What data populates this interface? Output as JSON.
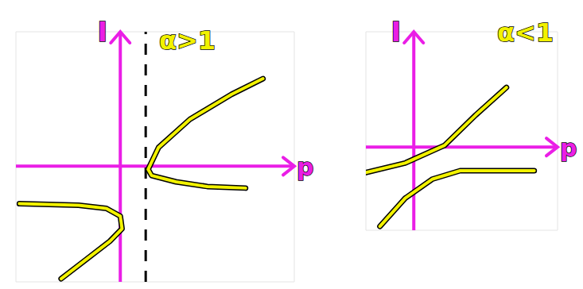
{
  "chart_data": [
    {
      "type": "line",
      "title": "α>1",
      "x_label": "p",
      "y_label": "I",
      "xlim": [
        -3,
        5
      ],
      "ylim": [
        -3.7,
        4.3
      ],
      "tick_labels": false,
      "reference_lines": [
        {
          "x": 0.73,
          "line_style": "dashed"
        }
      ],
      "series": [
        {
          "color": "#f2f200",
          "x": [
            4.1,
            3.2,
            2.0,
            1.1,
            0.8,
            0.9,
            1.6,
            2.5,
            3.6
          ],
          "values": [
            2.8,
            2.3,
            1.5,
            0.6,
            -0.1,
            -0.3,
            -0.5,
            -0.65,
            -0.7
          ]
        },
        {
          "color": "#f2f200",
          "x": [
            -2.9,
            -1.2,
            -0.4,
            0,
            0.05,
            -0.3,
            -1.0,
            -1.7
          ],
          "values": [
            -1.2,
            -1.25,
            -1.35,
            -1.6,
            -2.0,
            -2.4,
            -3.0,
            -3.6
          ]
        }
      ]
    },
    {
      "type": "line",
      "title": "α<1",
      "x_label": "p",
      "y_label": "I",
      "xlim": [
        -1.5,
        4.5
      ],
      "ylim": [
        -2.6,
        3.6
      ],
      "tick_labels": false,
      "reference_lines": [],
      "series": [
        {
          "color": "#f2f200",
          "x": [
            -1.5,
            -0.27,
            0.96,
            1.94,
            2.9
          ],
          "values": [
            -0.8,
            -0.5,
            0.05,
            1.0,
            1.86
          ]
        },
        {
          "color": "#f2f200",
          "x": [
            -1.06,
            -0.27,
            0.59,
            1.45,
            3.77
          ],
          "values": [
            -2.48,
            -1.6,
            -1.0,
            -0.74,
            -0.74
          ]
        }
      ]
    }
  ]
}
